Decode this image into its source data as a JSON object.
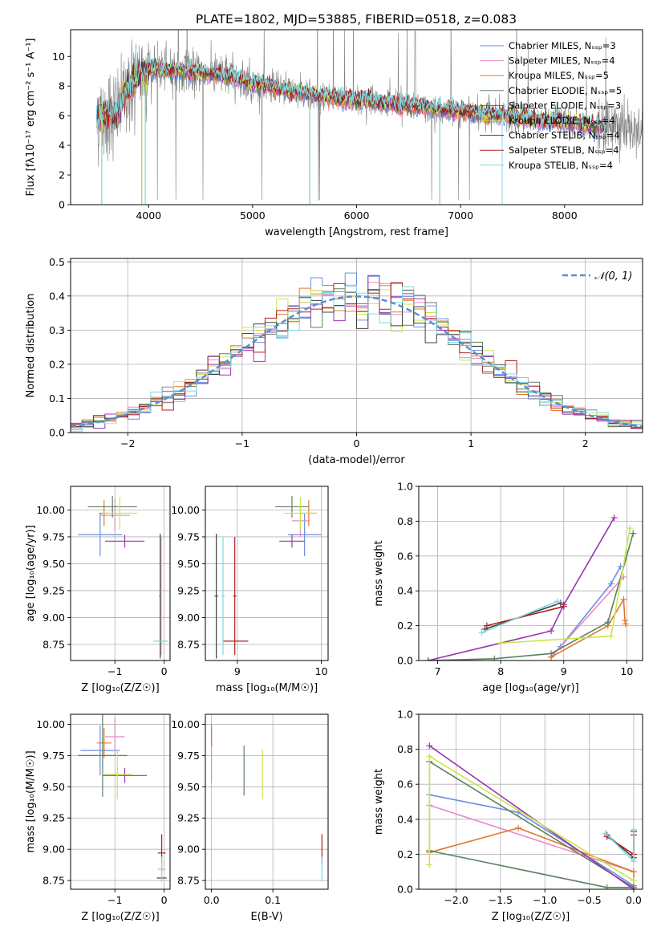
{
  "colors": {
    "series": [
      "#6b8ee0",
      "#e888c8",
      "#e07a2a",
      "#5f8060",
      "#9a35b0",
      "#c8e84a",
      "#404040",
      "#b02020",
      "#80d8e0"
    ],
    "noise": "#808080",
    "ref": "#5590d8",
    "grid": "#b0b0b0"
  },
  "chart_data": [
    {
      "type": "line",
      "title": "PLATE=1802, MJD=53885, FIBERID=0518, z=0.083",
      "xlabel": "wavelength [Angstrom, rest frame]",
      "ylabel": "Flux [fλ10⁻¹⁷ erg cm⁻² s⁻¹ A⁻¹]",
      "xlim": [
        3250,
        8750
      ],
      "ylim": [
        0,
        11.8
      ],
      "xticks": [
        4000,
        5000,
        6000,
        7000,
        8000
      ],
      "yticks": [
        0,
        2,
        4,
        6,
        8,
        10
      ],
      "grid": false,
      "legend_position": "top-right",
      "legend": [
        "Chabrier MILES, Nₛₛₚ=3",
        "Salpeter MILES, Nₛₛₚ=4",
        "Kroupa MILES, Nₛₛₚ=5",
        "Chabrier ELODIE, Nₛₛₚ=5",
        "Salpeter ELODIE, Nₛₛₚ=3",
        "Kroupa ELODIE, Nₛₛₚ=4",
        "Chabrier STELIB, Nₛₛₚ=4",
        "Salpeter STELIB, Nₛₛₚ=4",
        "Kroupa STELIB, Nₛₛₚ=4"
      ],
      "continuum": {
        "x": [
          3500,
          3600,
          3700,
          3800,
          3900,
          4000,
          4200,
          4400,
          4600,
          4800,
          5000,
          5400,
          5800,
          6200,
          6600,
          7000,
          7400,
          7800,
          8400
        ],
        "y": [
          5.8,
          6.1,
          6.3,
          7.8,
          8.6,
          9.2,
          9.1,
          9.0,
          8.8,
          8.6,
          8.2,
          7.6,
          7.2,
          6.9,
          6.6,
          6.3,
          6.0,
          5.7,
          5.2
        ]
      },
      "model_x_range": [
        3500,
        8400
      ],
      "data_x_range": [
        3500,
        9200
      ]
    },
    {
      "type": "histogram",
      "xlabel": "(data-model)/error",
      "ylabel": "Normed distribution",
      "xlim": [
        -2.5,
        2.5
      ],
      "ylim": [
        0,
        0.51
      ],
      "xticks": [
        -2,
        -1,
        0,
        1,
        2
      ],
      "yticks": [
        0,
        0.1,
        0.2,
        0.3,
        0.4,
        0.5
      ],
      "grid": true,
      "bin_width": 0.1,
      "reference_label": "𝒩(0, 1)",
      "reference": {
        "mean": 0,
        "sigma": 1
      }
    },
    {
      "type": "errorbar",
      "xlabel": "Z [log₁₀(Z/Z☉)]",
      "ylabel": "age  [log₁₀(age/yr)]",
      "xlim": [
        -1.9,
        0.12
      ],
      "ylim": [
        8.6,
        10.22
      ],
      "xticks": [
        -1,
        0
      ],
      "yticks": [
        8.75,
        9.0,
        9.25,
        9.5,
        9.75,
        10.0
      ],
      "grid": true,
      "points": [
        {
          "s": 0,
          "x": -1.3,
          "y": 9.77,
          "xerr": 0.45,
          "yerr": 0.2
        },
        {
          "s": 1,
          "x": -1.0,
          "y": 9.95,
          "xerr": 0.3,
          "yerr": 0.15
        },
        {
          "s": 2,
          "x": -1.22,
          "y": 9.97,
          "xerr": 0.1,
          "yerr": 0.12
        },
        {
          "s": 3,
          "x": -1.05,
          "y": 10.03,
          "xerr": 0.5,
          "yerr": 0.1
        },
        {
          "s": 4,
          "x": -0.8,
          "y": 9.71,
          "xerr": 0.4,
          "yerr": 0.06
        },
        {
          "s": 5,
          "x": -0.9,
          "y": 9.97,
          "xerr": 0.35,
          "yerr": 0.15
        },
        {
          "s": 6,
          "x": -0.08,
          "y": 9.2,
          "xerr": 0.02,
          "yerr": 0.58
        },
        {
          "s": 7,
          "x": -0.07,
          "y": 9.2,
          "xerr": 0.02,
          "yerr": 0.55
        },
        {
          "s": 8,
          "x": -0.06,
          "y": 9.2,
          "xerr": 0.02,
          "yerr": 0.55
        },
        {
          "s": 8,
          "x": -0.07,
          "y": 8.78,
          "xerr": 0.15,
          "yerr": 0.0
        }
      ]
    },
    {
      "type": "errorbar",
      "xlabel": "mass [log₁₀(M/M☉)]",
      "ylabel": "",
      "xlim": [
        8.62,
        10.08
      ],
      "ylim": [
        8.6,
        10.22
      ],
      "xticks": [
        9,
        10
      ],
      "yticks": [
        8.75,
        9.0,
        9.25,
        9.5,
        9.75,
        10.0
      ],
      "grid": true,
      "points": [
        {
          "s": 0,
          "x": 9.8,
          "y": 9.77,
          "xerr": 0.2,
          "yerr": 0.2
        },
        {
          "s": 1,
          "x": 9.75,
          "y": 9.9,
          "xerr": 0.1,
          "yerr": 0.15
        },
        {
          "s": 2,
          "x": 9.85,
          "y": 9.97,
          "xerr": 0.1,
          "yerr": 0.12
        },
        {
          "s": 3,
          "x": 9.65,
          "y": 10.03,
          "xerr": 0.2,
          "yerr": 0.1
        },
        {
          "s": 4,
          "x": 9.65,
          "y": 9.71,
          "xerr": 0.15,
          "yerr": 0.06
        },
        {
          "s": 5,
          "x": 9.75,
          "y": 9.97,
          "xerr": 0.2,
          "yerr": 0.15
        },
        {
          "s": 6,
          "x": 8.75,
          "y": 9.2,
          "xerr": 0.02,
          "yerr": 0.58
        },
        {
          "s": 7,
          "x": 8.97,
          "y": 9.2,
          "xerr": 0.02,
          "yerr": 0.55
        },
        {
          "s": 7,
          "x": 8.98,
          "y": 8.78,
          "xerr": 0.15,
          "yerr": 0.0
        },
        {
          "s": 8,
          "x": 8.83,
          "y": 9.2,
          "xerr": 0.02,
          "yerr": 0.55
        }
      ]
    },
    {
      "type": "line",
      "xlabel": "age  [log₁₀(age/yr)]",
      "ylabel": "mass weight",
      "xlim": [
        6.7,
        10.25
      ],
      "ylim": [
        0,
        1.0
      ],
      "xticks": [
        7,
        8,
        9,
        10
      ],
      "yticks": [
        0,
        0.2,
        0.4,
        0.6,
        0.8,
        1.0
      ],
      "grid": true,
      "series": [
        {
          "s": 0,
          "x": [
            8.8,
            8.95,
            9.75,
            9.9
          ],
          "y": [
            0.02,
            0.08,
            0.44,
            0.54
          ]
        },
        {
          "s": 1,
          "x": [
            8.8,
            9.95
          ],
          "y": [
            0.02,
            0.48
          ]
        },
        {
          "s": 2,
          "x": [
            8.8,
            9.7,
            9.95,
            9.97,
            9.98
          ],
          "y": [
            0.02,
            0.2,
            0.35,
            0.23,
            0.21
          ]
        },
        {
          "s": 3,
          "x": [
            6.85,
            7.9,
            8.8,
            9.7,
            10.1
          ],
          "y": [
            0.0,
            0.01,
            0.04,
            0.22,
            0.73
          ]
        },
        {
          "s": 4,
          "x": [
            6.85,
            8.8,
            9.0,
            9.8
          ],
          "y": [
            0.0,
            0.17,
            0.32,
            0.82
          ]
        },
        {
          "s": 5,
          "x": [
            8.0,
            9.75,
            10.05
          ],
          "y": [
            0.1,
            0.14,
            0.76
          ]
        },
        {
          "s": 6,
          "x": [
            7.75,
            8.95
          ],
          "y": [
            0.18,
            0.33
          ]
        },
        {
          "s": 7,
          "x": [
            7.78,
            9.0
          ],
          "y": [
            0.2,
            0.31
          ]
        },
        {
          "s": 8,
          "x": [
            7.7,
            8.9
          ],
          "y": [
            0.16,
            0.34
          ]
        }
      ]
    },
    {
      "type": "errorbar",
      "xlabel": "Z [log₁₀(Z/Z☉)]",
      "ylabel": "mass [log₁₀(M/M☉)]",
      "xlim": [
        -1.9,
        0.12
      ],
      "ylim": [
        8.68,
        10.08
      ],
      "xticks": [
        -1,
        0
      ],
      "yticks": [
        8.75,
        9.0,
        9.25,
        9.5,
        9.75,
        10.0
      ],
      "grid": true,
      "points": [
        {
          "s": 0,
          "x": -1.3,
          "y": 9.79,
          "xerr": 0.4,
          "yerr": 0.2
        },
        {
          "s": 1,
          "x": -1.0,
          "y": 9.9,
          "xerr": 0.2,
          "yerr": 0.15
        },
        {
          "s": 2,
          "x": -1.22,
          "y": 9.85,
          "xerr": 0.15,
          "yerr": 0.12
        },
        {
          "s": 3,
          "x": -1.25,
          "y": 9.75,
          "xerr": 0.5,
          "yerr": 0.33
        },
        {
          "s": 4,
          "x": -0.8,
          "y": 9.59,
          "xerr": 0.45,
          "yerr": 0.06
        },
        {
          "s": 5,
          "x": -0.95,
          "y": 9.6,
          "xerr": 0.3,
          "yerr": 0.2
        },
        {
          "s": 6,
          "x": -0.05,
          "y": 8.77,
          "xerr": 0.1,
          "yerr": 0.0
        },
        {
          "s": 7,
          "x": -0.05,
          "y": 8.97,
          "xerr": 0.08,
          "yerr": 0.15
        },
        {
          "s": 8,
          "x": -0.05,
          "y": 8.84,
          "xerr": 0.08,
          "yerr": 0.1
        }
      ]
    },
    {
      "type": "errorbar",
      "xlabel": "E(B-V)",
      "ylabel": "",
      "xlim": [
        -0.01,
        0.19
      ],
      "ylim": [
        8.68,
        10.08
      ],
      "xticks": [
        0.0,
        0.1
      ],
      "yticks": [
        8.75,
        9.0,
        9.25,
        9.5,
        9.75,
        10.0
      ],
      "grid": true,
      "points": [
        {
          "s": 1,
          "x": 0.0,
          "y": 9.75,
          "xerr": 0,
          "yerr": 0.22
        },
        {
          "s": 2,
          "x": 0.0,
          "y": 9.91,
          "xerr": 0,
          "yerr": 0.09
        },
        {
          "s": 3,
          "x": 0.053,
          "y": 9.63,
          "xerr": 0,
          "yerr": 0.2
        },
        {
          "s": 5,
          "x": 0.083,
          "y": 9.6,
          "xerr": 0,
          "yerr": 0.2
        },
        {
          "s": 7,
          "x": 0.18,
          "y": 9.0,
          "xerr": 0,
          "yerr": 0.12
        },
        {
          "s": 8,
          "x": 0.18,
          "y": 8.84,
          "xerr": 0,
          "yerr": 0.1
        }
      ]
    },
    {
      "type": "line",
      "xlabel": "Z [log₁₀(Z/Z☉)]",
      "ylabel": "mass weight",
      "xlim": [
        -2.42,
        0.1
      ],
      "ylim": [
        0,
        1.0
      ],
      "xticks": [
        -2.0,
        -1.5,
        -1.0,
        -0.5,
        0.0
      ],
      "yticks": [
        0,
        0.2,
        0.4,
        0.6,
        0.8,
        1.0
      ],
      "grid": true,
      "series": [
        {
          "s": 0,
          "x": [
            -2.3,
            -1.3,
            0.0
          ],
          "y": [
            0.54,
            0.44,
            0.02
          ]
        },
        {
          "s": 1,
          "x": [
            -2.3,
            0.0
          ],
          "y": [
            0.48,
            0.1
          ]
        },
        {
          "s": 2,
          "x": [
            -2.3,
            -1.3,
            0.0,
            0.0
          ],
          "y": [
            0.21,
            0.35,
            0.1,
            0.02
          ]
        },
        {
          "s": 3,
          "x": [
            -2.3,
            -0.3,
            0.0,
            -2.3,
            -2.3
          ],
          "y": [
            0.22,
            0.01,
            0.01,
            0.73,
            0.22
          ]
        },
        {
          "s": 4,
          "x": [
            -2.3,
            0.0
          ],
          "y": [
            0.82,
            0.0
          ]
        },
        {
          "s": 5,
          "x": [
            -2.3,
            -2.3,
            0.0
          ],
          "y": [
            0.14,
            0.76,
            0.05
          ]
        },
        {
          "s": 6,
          "x": [
            -0.3,
            0.0,
            0.0
          ],
          "y": [
            0.31,
            0.18,
            0.33
          ]
        },
        {
          "s": 7,
          "x": [
            -0.3,
            0.0,
            0.0
          ],
          "y": [
            0.3,
            0.2,
            0.31
          ]
        },
        {
          "s": 8,
          "x": [
            -0.32,
            0.0,
            0.0
          ],
          "y": [
            0.32,
            0.16,
            0.34
          ]
        }
      ]
    }
  ]
}
